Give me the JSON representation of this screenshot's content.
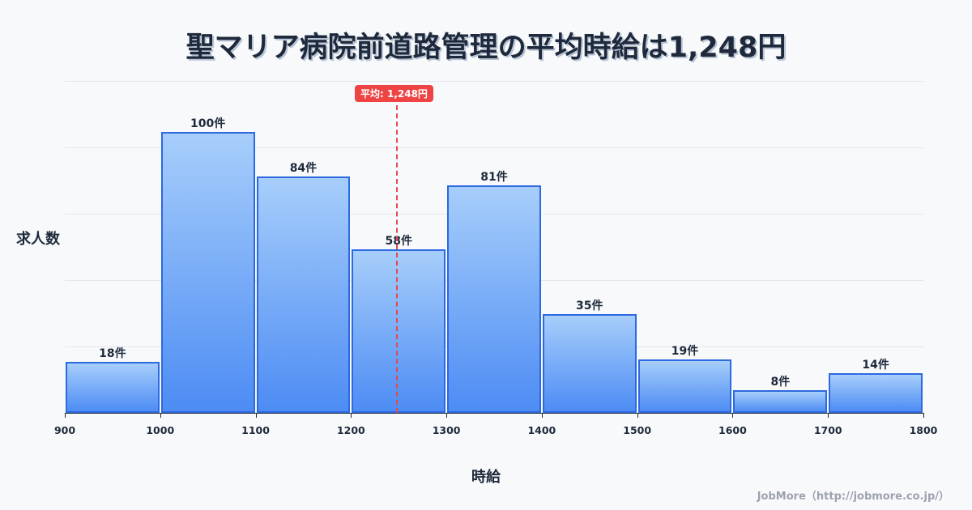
{
  "title": "聖マリア病院前道路管理の平均時給は1,248円",
  "mean_badge": "平均: 1,248円",
  "ylabel": "求人数",
  "xlabel": "時給",
  "credit": "JobMore（http://jobmore.co.jp/）",
  "colors": {
    "bar_top": "#a7cefb",
    "bar_bottom": "#4d8cf4",
    "bar_border": "#2d69e0",
    "mean": "#ef4444",
    "text": "#1e293b"
  },
  "chart_data": {
    "type": "bar",
    "title": "聖マリア病院前道路管理の平均時給は1,248円",
    "xlabel": "時給",
    "ylabel": "求人数",
    "bin_edges": [
      900,
      1000,
      1100,
      1200,
      1300,
      1400,
      1500,
      1600,
      1700,
      1800
    ],
    "categories": [
      "900-1000",
      "1000-1100",
      "1100-1200",
      "1200-1300",
      "1300-1400",
      "1400-1500",
      "1500-1600",
      "1600-1700",
      "1700-1800"
    ],
    "values": [
      18,
      100,
      84,
      58,
      81,
      35,
      19,
      8,
      14
    ],
    "value_labels": [
      "18件",
      "100件",
      "84件",
      "58件",
      "81件",
      "35件",
      "19件",
      "8件",
      "14件"
    ],
    "tick_labels": [
      "900",
      "1000",
      "1100",
      "1200",
      "1300",
      "1400",
      "1500",
      "1600",
      "1700",
      "1800"
    ],
    "mean": 1248,
    "mean_label": "平均: 1,248円",
    "ylim": [
      0,
      118
    ],
    "grid": true,
    "legend": null
  }
}
